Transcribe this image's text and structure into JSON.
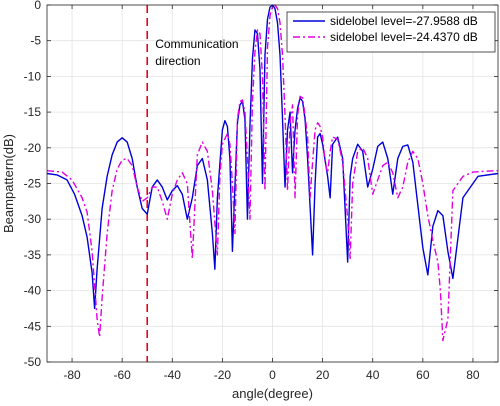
{
  "chart_data": {
    "type": "line",
    "xlabel": "angle(degree)",
    "ylabel": "Beampattern(dB)",
    "xlim": [
      -90,
      90
    ],
    "ylim": [
      -50,
      0
    ],
    "xticks": [
      -80,
      -60,
      -40,
      -20,
      0,
      20,
      40,
      60,
      80
    ],
    "yticks": [
      0,
      -5,
      -10,
      -15,
      -20,
      -25,
      -30,
      -35,
      -40,
      -45,
      -50
    ],
    "grid": true,
    "legend_position": "top-right",
    "annotation": {
      "lines": [
        "Communication",
        "direction"
      ],
      "x": -50,
      "color": "#e8001c"
    },
    "series": [
      {
        "name": "sidelobel level=-27.9588 dB",
        "color": "#0000d8",
        "style": "solid",
        "x": [
          -90,
          -86,
          -82,
          -79,
          -76,
          -74,
          -72,
          -71,
          -70,
          -68,
          -66,
          -64,
          -62,
          -60,
          -58,
          -56,
          -54,
          -52,
          -50,
          -48,
          -46,
          -44,
          -42,
          -40,
          -38,
          -36,
          -34,
          -32,
          -30,
          -28,
          -26,
          -24,
          -23,
          -22,
          -20,
          -19,
          -18,
          -17,
          -16,
          -14,
          -13,
          -12,
          -11,
          -10,
          -9,
          -8,
          -7,
          -6,
          -5,
          -4,
          -3,
          -2,
          -1,
          0,
          1,
          2,
          3,
          4,
          5,
          6,
          7,
          8,
          9,
          10,
          11,
          12,
          13,
          14,
          16,
          17,
          18,
          19,
          20,
          22,
          23,
          24,
          26,
          28,
          30,
          31,
          32,
          34,
          36,
          38,
          40,
          42,
          44,
          46,
          48,
          50,
          52,
          54,
          56,
          58,
          60,
          62,
          64,
          66,
          68,
          70,
          72,
          76,
          82,
          90
        ],
        "y": [
          -23.6,
          -23.8,
          -24.5,
          -26.5,
          -29.5,
          -32.5,
          -37.5,
          -42.5,
          -37,
          -28.5,
          -24,
          -21,
          -19.2,
          -18.6,
          -19.2,
          -21.5,
          -25.5,
          -28.5,
          -29.3,
          -25.5,
          -24.5,
          -25.5,
          -27.3,
          -26,
          -25.3,
          -26.5,
          -30,
          -27,
          -22.5,
          -21.5,
          -24.5,
          -32,
          -37,
          -27,
          -17.5,
          -16.2,
          -17,
          -21.5,
          -34.5,
          -16.5,
          -14,
          -13.5,
          -16,
          -30,
          -17,
          -7.5,
          -3.5,
          -4,
          -9,
          -25,
          -7,
          -2,
          -0.3,
          0,
          -0.5,
          -2.5,
          -7,
          -16,
          -25.5,
          -17.5,
          -15,
          -23.5,
          -17.5,
          -14.5,
          -13,
          -13.5,
          -16,
          -21.5,
          -35,
          -25,
          -18.5,
          -18,
          -19.5,
          -24,
          -27,
          -19.5,
          -18.5,
          -21.5,
          -36,
          -24,
          -21.5,
          -19.5,
          -20.5,
          -25.5,
          -23,
          -19.8,
          -19.2,
          -21.5,
          -26.5,
          -21.5,
          -19.8,
          -19.6,
          -22,
          -28,
          -34,
          -37.8,
          -31,
          -28.8,
          -29.5,
          -34.5,
          -38.3,
          -27,
          -24,
          -23.6
        ]
      },
      {
        "name": "sidelobel level=-24.4370 dB",
        "color": "#e000e0",
        "style": "dashdot",
        "x": [
          -90,
          -84,
          -80,
          -76,
          -74,
          -72,
          -70,
          -69,
          -68,
          -66,
          -64,
          -62,
          -60,
          -58,
          -56,
          -54,
          -52,
          -50,
          -48,
          -46,
          -44,
          -42,
          -40,
          -38,
          -36,
          -34,
          -32,
          -30,
          -28,
          -26,
          -24,
          -22,
          -21,
          -20,
          -18,
          -17,
          -16,
          -15,
          -14,
          -13,
          -12,
          -11,
          -10,
          -9,
          -8,
          -7,
          -6,
          -5,
          -4,
          -3,
          -2,
          -1,
          0,
          1,
          2,
          3,
          4,
          5,
          6,
          7,
          8,
          9,
          10,
          11,
          12,
          13,
          14,
          15,
          16,
          17,
          18,
          19,
          20,
          21,
          22,
          23,
          24,
          26,
          28,
          30,
          31,
          32,
          34,
          36,
          38,
          40,
          42,
          44,
          46,
          48,
          50,
          52,
          54,
          56,
          58,
          60,
          62,
          64,
          66,
          67,
          68,
          70,
          72,
          76,
          80,
          84,
          90
        ],
        "y": [
          -23.2,
          -23.4,
          -24.5,
          -27,
          -29,
          -34.5,
          -44,
          -46.5,
          -41,
          -32,
          -26,
          -23,
          -21.7,
          -21.5,
          -22.5,
          -25.5,
          -27.5,
          -27,
          -25.5,
          -25.5,
          -27.5,
          -30,
          -26.5,
          -24.5,
          -23.5,
          -25,
          -35.5,
          -21,
          -19.2,
          -20.5,
          -26,
          -35,
          -24,
          -19.5,
          -18,
          -19.5,
          -25,
          -32,
          -16,
          -13.5,
          -13.3,
          -15,
          -21.5,
          -30,
          -13.5,
          -6.5,
          -3.5,
          -4,
          -10,
          -26,
          -6,
          -1.5,
          -0.2,
          0,
          -0.5,
          -2.5,
          -7,
          -15.5,
          -26,
          -16.5,
          -14,
          -27,
          -15.5,
          -12.8,
          -13,
          -15.5,
          -18.5,
          -27,
          -22,
          -17.5,
          -16.5,
          -17,
          -18.5,
          -22,
          -23.5,
          -20.5,
          -18.5,
          -18.8,
          -22,
          -30,
          -35.5,
          -25,
          -20.5,
          -20,
          -21.5,
          -26.5,
          -24.5,
          -22.5,
          -22,
          -23.5,
          -27,
          -25.5,
          -22,
          -20.5,
          -21.5,
          -25,
          -29.5,
          -33,
          -36,
          -40,
          -47,
          -44,
          -26,
          -24,
          -23.4,
          -23.3,
          -23.2
        ]
      }
    ]
  }
}
